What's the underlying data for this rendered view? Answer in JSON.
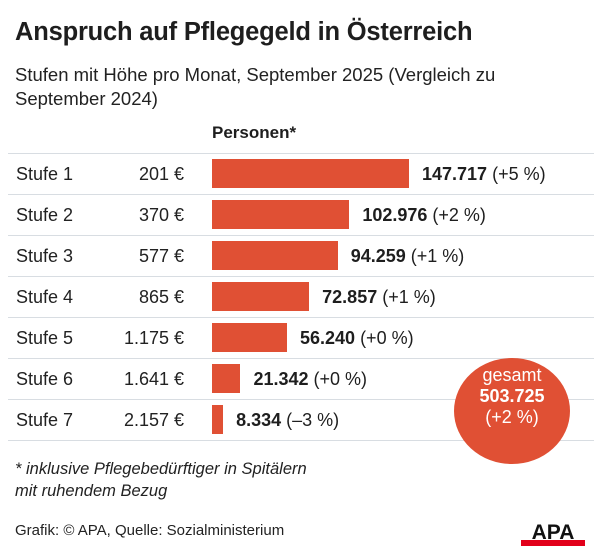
{
  "colors": {
    "bar": "#e05034",
    "circle": "#e05034",
    "logo_red": "#e2001a",
    "text": "#1e1e1e"
  },
  "title": "Anspruch auf Pflegegeld in Österreich",
  "subtitle": "Stufen mit Höhe pro Monat, September 2025 (Vergleich zu September 2024)",
  "column_header": "Personen*",
  "total": {
    "label": "gesamt",
    "value": "503.725",
    "change": "(+2 %)"
  },
  "footnote_line1": "* inklusive Pflegebedürftiger in Spitälern",
  "footnote_line2": "mit ruhendem Bezug",
  "source": "Grafik: © APA, Quelle: Sozialministerium",
  "logo_text": "APA",
  "chart_data": {
    "type": "bar",
    "orientation": "horizontal",
    "title": "Anspruch auf Pflegegeld in Österreich",
    "subtitle": "Stufen mit Höhe pro Monat, September 2025 (Vergleich zu September 2024)",
    "xlabel": "Personen*",
    "ylabel": "",
    "xlim": [
      0,
      147717
    ],
    "grid": false,
    "legend": "none",
    "categories": [
      "Stufe 1",
      "Stufe 2",
      "Stufe 3",
      "Stufe 4",
      "Stufe 5",
      "Stufe 6",
      "Stufe 7"
    ],
    "amounts": [
      "201 €",
      "370 €",
      "577 €",
      "865 €",
      "1.175 €",
      "1.641 €",
      "2.157 €"
    ],
    "values": [
      147717,
      102976,
      94259,
      72857,
      56240,
      21342,
      8334
    ],
    "value_labels": [
      "147.717",
      "102.976",
      "94.259",
      "72.857",
      "56.240",
      "21.342",
      "8.334"
    ],
    "changes": [
      "(+5 %)",
      "(+2 %)",
      "(+1 %)",
      "(+1 %)",
      "(+0 %)",
      "(+0 %)",
      "(–3 %)"
    ],
    "total": 503725,
    "total_change": "(+2 %)"
  }
}
